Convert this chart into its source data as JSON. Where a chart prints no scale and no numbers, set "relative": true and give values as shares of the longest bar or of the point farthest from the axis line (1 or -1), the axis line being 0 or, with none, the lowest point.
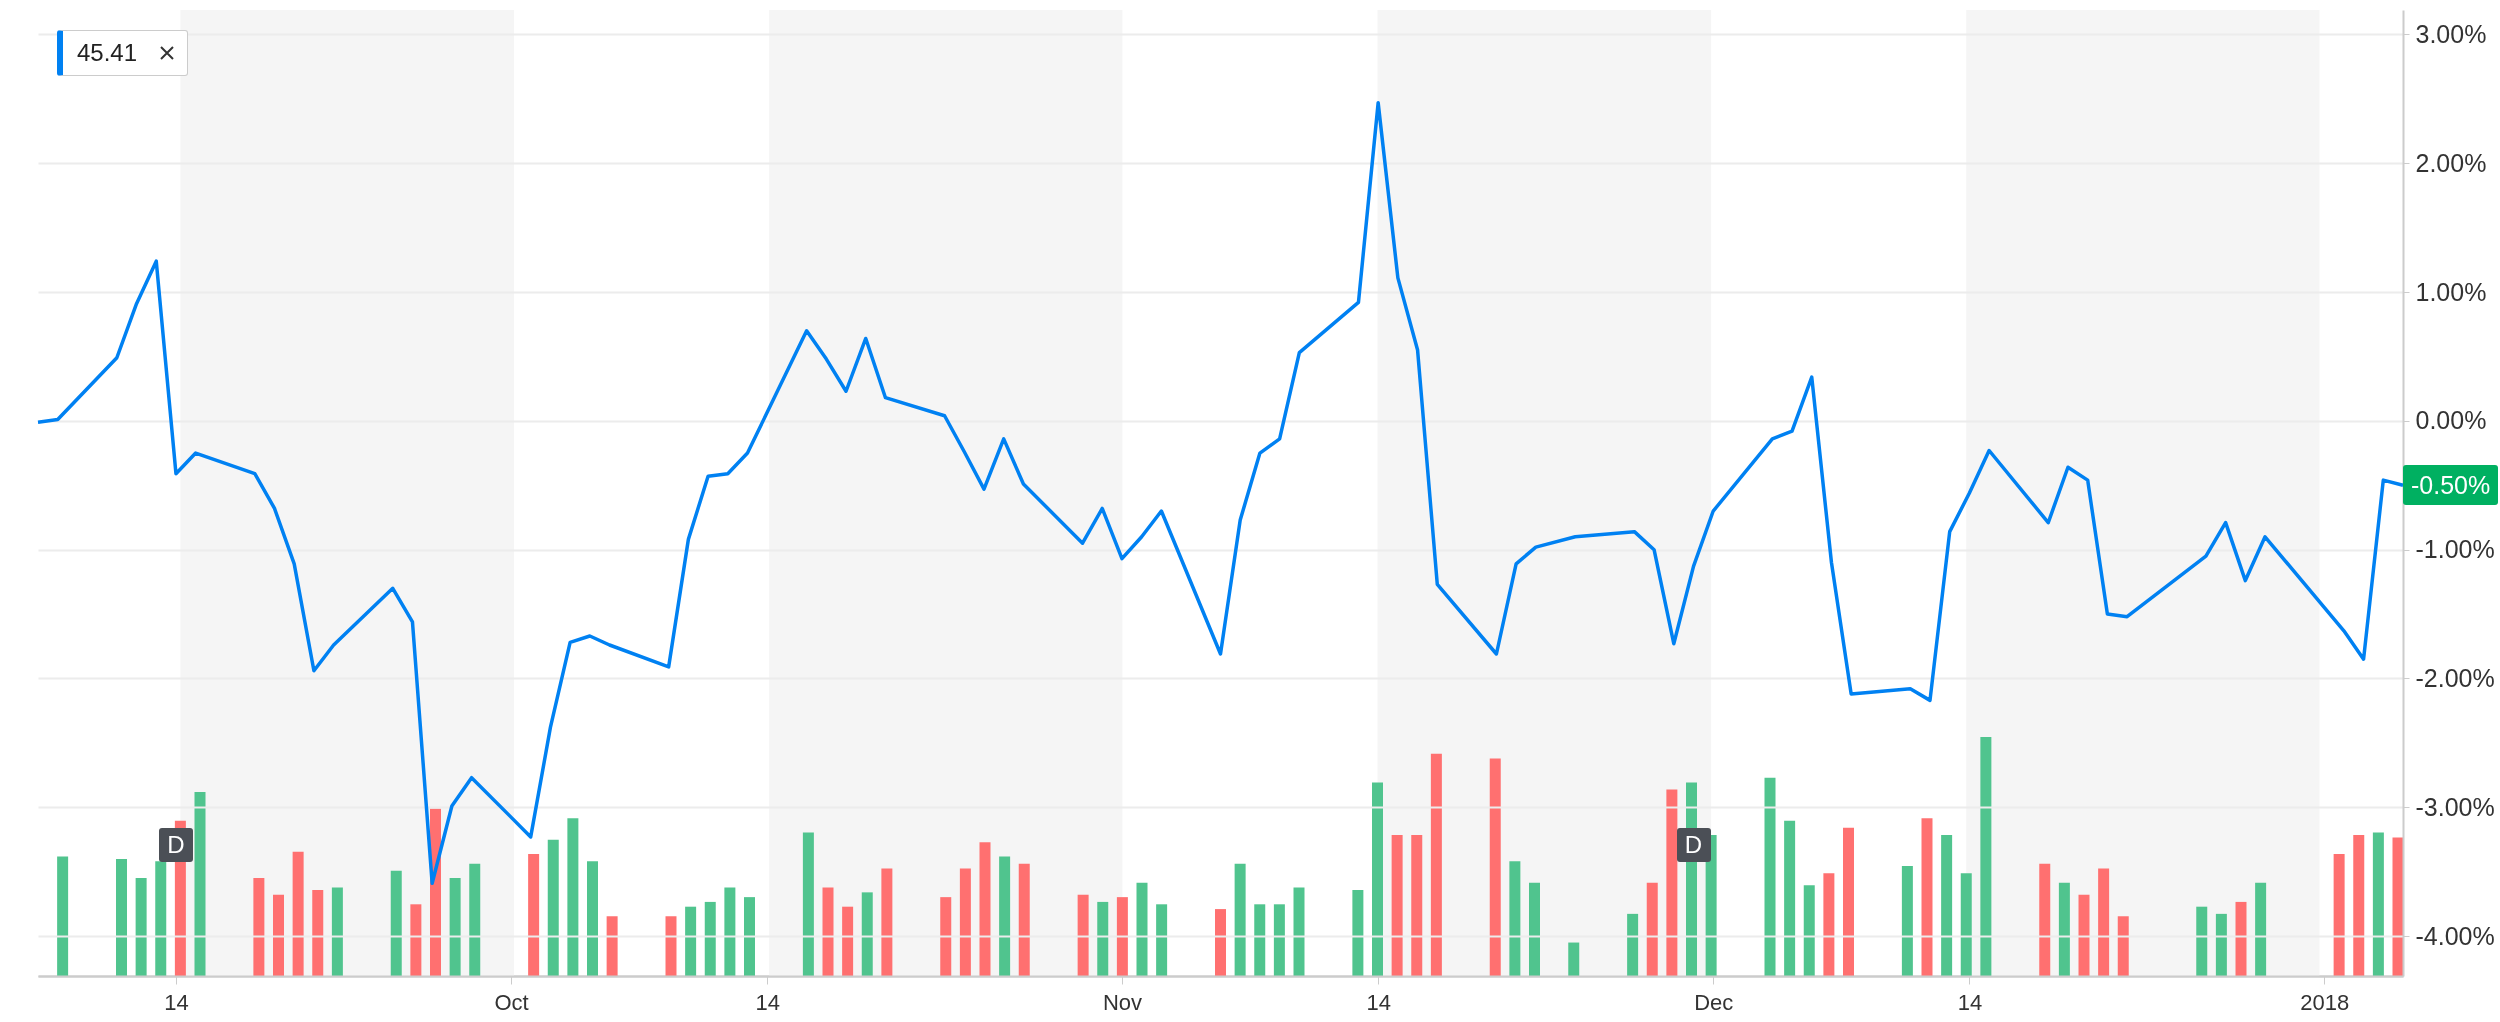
{
  "chart_data": [
    {
      "type": "line",
      "xlim": [
        "2017-09-07",
        "2018-01-05"
      ],
      "ylim": [
        -4.31,
        3.19
      ],
      "xticks": [
        {
          "value": "2017-09-14",
          "label": "14"
        },
        {
          "value": "2017-10-01",
          "label": "Oct"
        },
        {
          "value": "2017-10-14",
          "label": "14"
        },
        {
          "value": "2017-11-01",
          "label": "Nov"
        },
        {
          "value": "2017-11-14",
          "label": "14"
        },
        {
          "value": "2017-12-01",
          "label": "Dec"
        },
        {
          "value": "2017-12-14",
          "label": "14"
        },
        {
          "value": "2018-01-01",
          "label": "2018"
        }
      ],
      "yticks": [
        {
          "value": 3,
          "label": "3.00%"
        },
        {
          "value": 2,
          "label": "2.00%"
        },
        {
          "value": 1,
          "label": "1.00%"
        },
        {
          "value": 0,
          "label": "0.00%"
        },
        {
          "value": -1,
          "label": "-1.00%"
        },
        {
          "value": -2,
          "label": "-2.00%"
        },
        {
          "value": -3,
          "label": "-3.00%"
        },
        {
          "value": -4,
          "label": "-4.00%"
        }
      ],
      "grid": "y",
      "line_style": "solid",
      "annotations": [
        "45.41",
        {
          "text": "-0.50%",
          "x": "2018-01-05",
          "y": -0.5
        }
      ],
      "series": [
        {
          "color": "#0081f2",
          "x": [
            "2017-09-07",
            "2017-09-08",
            "2017-09-11",
            "2017-09-12",
            "2017-09-13",
            "2017-09-14",
            "2017-09-15",
            "2017-09-18",
            "2017-09-19",
            "2017-09-20",
            "2017-09-21",
            "2017-09-22",
            "2017-09-25",
            "2017-09-26",
            "2017-09-27",
            "2017-09-28",
            "2017-09-29",
            "2017-10-02",
            "2017-10-03",
            "2017-10-04",
            "2017-10-05",
            "2017-10-06",
            "2017-10-09",
            "2017-10-10",
            "2017-10-11",
            "2017-10-12",
            "2017-10-13",
            "2017-10-16",
            "2017-10-17",
            "2017-10-18",
            "2017-10-19",
            "2017-10-20",
            "2017-10-23",
            "2017-10-24",
            "2017-10-25",
            "2017-10-26",
            "2017-10-27",
            "2017-10-30",
            "2017-10-31",
            "2017-11-01",
            "2017-11-02",
            "2017-11-03",
            "2017-11-06",
            "2017-11-07",
            "2017-11-08",
            "2017-11-09",
            "2017-11-10",
            "2017-11-13",
            "2017-11-14",
            "2017-11-15",
            "2017-11-16",
            "2017-11-17",
            "2017-11-20",
            "2017-11-21",
            "2017-11-22",
            "2017-11-24",
            "2017-11-27",
            "2017-11-28",
            "2017-11-29",
            "2017-11-30",
            "2017-12-01",
            "2017-12-04",
            "2017-12-05",
            "2017-12-06",
            "2017-12-07",
            "2017-12-08",
            "2017-12-11",
            "2017-12-12",
            "2017-12-13",
            "2017-12-14",
            "2017-12-15",
            "2017-12-18",
            "2017-12-19",
            "2017-12-20",
            "2017-12-21",
            "2017-12-22",
            "2017-12-26",
            "2017-12-27",
            "2017-12-28",
            "2017-12-29",
            "2018-01-02",
            "2018-01-03",
            "2018-01-04",
            "2018-01-05"
          ],
          "values": [
            -0.01,
            0.01,
            0.49,
            0.91,
            1.24,
            -0.41,
            -0.25,
            -0.41,
            -0.68,
            -1.11,
            -1.94,
            -1.74,
            -1.3,
            -1.56,
            -3.59,
            -2.99,
            -2.77,
            -3.23,
            -2.38,
            -1.72,
            -1.67,
            -1.74,
            -1.91,
            -0.92,
            -0.43,
            -0.41,
            -0.25,
            0.7,
            0.48,
            0.23,
            0.64,
            0.18,
            0.04,
            -0.24,
            -0.53,
            -0.14,
            -0.49,
            -0.95,
            -0.68,
            -1.07,
            -0.9,
            -0.7,
            -1.81,
            -0.77,
            -0.25,
            -0.14,
            0.53,
            0.92,
            2.47,
            1.11,
            0.55,
            -1.27,
            -1.81,
            -1.11,
            -0.98,
            -0.9,
            -0.86,
            -1.0,
            -1.73,
            -1.13,
            -0.7,
            -0.14,
            -0.08,
            0.34,
            -1.1,
            -2.12,
            -2.08,
            -2.17,
            -0.86,
            -0.56,
            -0.23,
            -0.79,
            -0.36,
            -0.46,
            -1.5,
            -1.52,
            -1.05,
            -0.79,
            -1.24,
            -0.9,
            -1.63,
            -1.85,
            -0.46,
            -0.5
          ]
        }
      ]
    },
    {
      "type": "bar",
      "relative": true,
      "xlim": [
        "2017-09-07",
        "2018-01-05"
      ],
      "bands": [
        {
          "axis": "x",
          "from": "2017-09-14",
          "to": "2017-10-01",
          "color": "#f5f5f5"
        },
        {
          "axis": "x",
          "from": "2017-10-14",
          "to": "2017-11-01",
          "color": "#f5f5f5"
        },
        {
          "axis": "x",
          "from": "2017-11-14",
          "to": "2017-12-01",
          "color": "#f5f5f5"
        },
        {
          "axis": "x",
          "from": "2017-12-14",
          "to": "2018-01-01",
          "color": "#f5f5f5"
        }
      ],
      "annotations": [
        {
          "text": "D",
          "x": "2017-09-14"
        },
        {
          "text": "D",
          "x": "2017-11-30"
        }
      ],
      "x": [
        "2017-09-08",
        "2017-09-11",
        "2017-09-12",
        "2017-09-13",
        "2017-09-14",
        "2017-09-15",
        "2017-09-18",
        "2017-09-19",
        "2017-09-20",
        "2017-09-21",
        "2017-09-22",
        "2017-09-25",
        "2017-09-26",
        "2017-09-27",
        "2017-09-28",
        "2017-09-29",
        "2017-10-02",
        "2017-10-03",
        "2017-10-04",
        "2017-10-05",
        "2017-10-06",
        "2017-10-09",
        "2017-10-10",
        "2017-10-11",
        "2017-10-12",
        "2017-10-13",
        "2017-10-16",
        "2017-10-17",
        "2017-10-18",
        "2017-10-19",
        "2017-10-20",
        "2017-10-23",
        "2017-10-24",
        "2017-10-25",
        "2017-10-26",
        "2017-10-27",
        "2017-10-30",
        "2017-10-31",
        "2017-11-01",
        "2017-11-02",
        "2017-11-03",
        "2017-11-06",
        "2017-11-07",
        "2017-11-08",
        "2017-11-09",
        "2017-11-10",
        "2017-11-13",
        "2017-11-14",
        "2017-11-15",
        "2017-11-16",
        "2017-11-17",
        "2017-11-20",
        "2017-11-21",
        "2017-11-22",
        "2017-11-24",
        "2017-11-27",
        "2017-11-28",
        "2017-11-29",
        "2017-11-30",
        "2017-12-01",
        "2017-12-04",
        "2017-12-05",
        "2017-12-06",
        "2017-12-07",
        "2017-12-08",
        "2017-12-11",
        "2017-12-12",
        "2017-12-13",
        "2017-12-14",
        "2017-12-15",
        "2017-12-18",
        "2017-12-19",
        "2017-12-20",
        "2017-12-21",
        "2017-12-22",
        "2017-12-26",
        "2017-12-27",
        "2017-12-28",
        "2017-12-29",
        "2018-01-02",
        "2018-01-03",
        "2018-01-04",
        "2018-01-05"
      ],
      "values": [
        0.5,
        0.49,
        0.41,
        0.48,
        0.65,
        0.77,
        0.41,
        0.34,
        0.52,
        0.36,
        0.37,
        0.44,
        0.3,
        0.7,
        0.41,
        0.47,
        0.51,
        0.57,
        0.66,
        0.48,
        0.25,
        0.25,
        0.29,
        0.31,
        0.37,
        0.33,
        0.6,
        0.37,
        0.29,
        0.35,
        0.45,
        0.33,
        0.45,
        0.56,
        0.5,
        0.47,
        0.34,
        0.31,
        0.33,
        0.39,
        0.3,
        0.28,
        0.47,
        0.3,
        0.3,
        0.37,
        0.36,
        0.81,
        0.59,
        0.59,
        0.93,
        0.91,
        0.48,
        0.39,
        0.14,
        0.26,
        0.39,
        0.78,
        0.81,
        0.59,
        0.83,
        0.65,
        0.38,
        0.43,
        0.62,
        0.46,
        0.66,
        0.59,
        0.43,
        1.0,
        0.47,
        0.39,
        0.34,
        0.45,
        0.25,
        0.29,
        0.26,
        0.31,
        0.39,
        0.51,
        0.59,
        0.6,
        0.58
      ],
      "colors": [
        "#50c48e",
        "#50c48e",
        "#50c48e",
        "#50c48e",
        "#ff7070",
        "#50c48e",
        "#ff7070",
        "#ff7070",
        "#ff7070",
        "#ff7070",
        "#50c48e",
        "#50c48e",
        "#ff7070",
        "#ff7070",
        "#50c48e",
        "#50c48e",
        "#ff7070",
        "#50c48e",
        "#50c48e",
        "#50c48e",
        "#ff7070",
        "#ff7070",
        "#50c48e",
        "#50c48e",
        "#50c48e",
        "#50c48e",
        "#50c48e",
        "#ff7070",
        "#ff7070",
        "#50c48e",
        "#ff7070",
        "#ff7070",
        "#ff7070",
        "#ff7070",
        "#50c48e",
        "#ff7070",
        "#ff7070",
        "#50c48e",
        "#ff7070",
        "#50c48e",
        "#50c48e",
        "#ff7070",
        "#50c48e",
        "#50c48e",
        "#50c48e",
        "#50c48e",
        "#50c48e",
        "#50c48e",
        "#ff7070",
        "#ff7070",
        "#ff7070",
        "#ff7070",
        "#50c48e",
        "#50c48e",
        "#50c48e",
        "#50c48e",
        "#ff7070",
        "#ff7070",
        "#50c48e",
        "#50c48e",
        "#50c48e",
        "#50c48e",
        "#50c48e",
        "#ff7070",
        "#ff7070",
        "#50c48e",
        "#ff7070",
        "#50c48e",
        "#50c48e",
        "#50c48e",
        "#ff7070",
        "#50c48e",
        "#ff7070",
        "#ff7070",
        "#ff7070",
        "#50c48e",
        "#50c48e",
        "#ff7070",
        "#50c48e",
        "#ff7070",
        "#ff7070",
        "#50c48e",
        "#ff7070"
      ]
    }
  ]
}
